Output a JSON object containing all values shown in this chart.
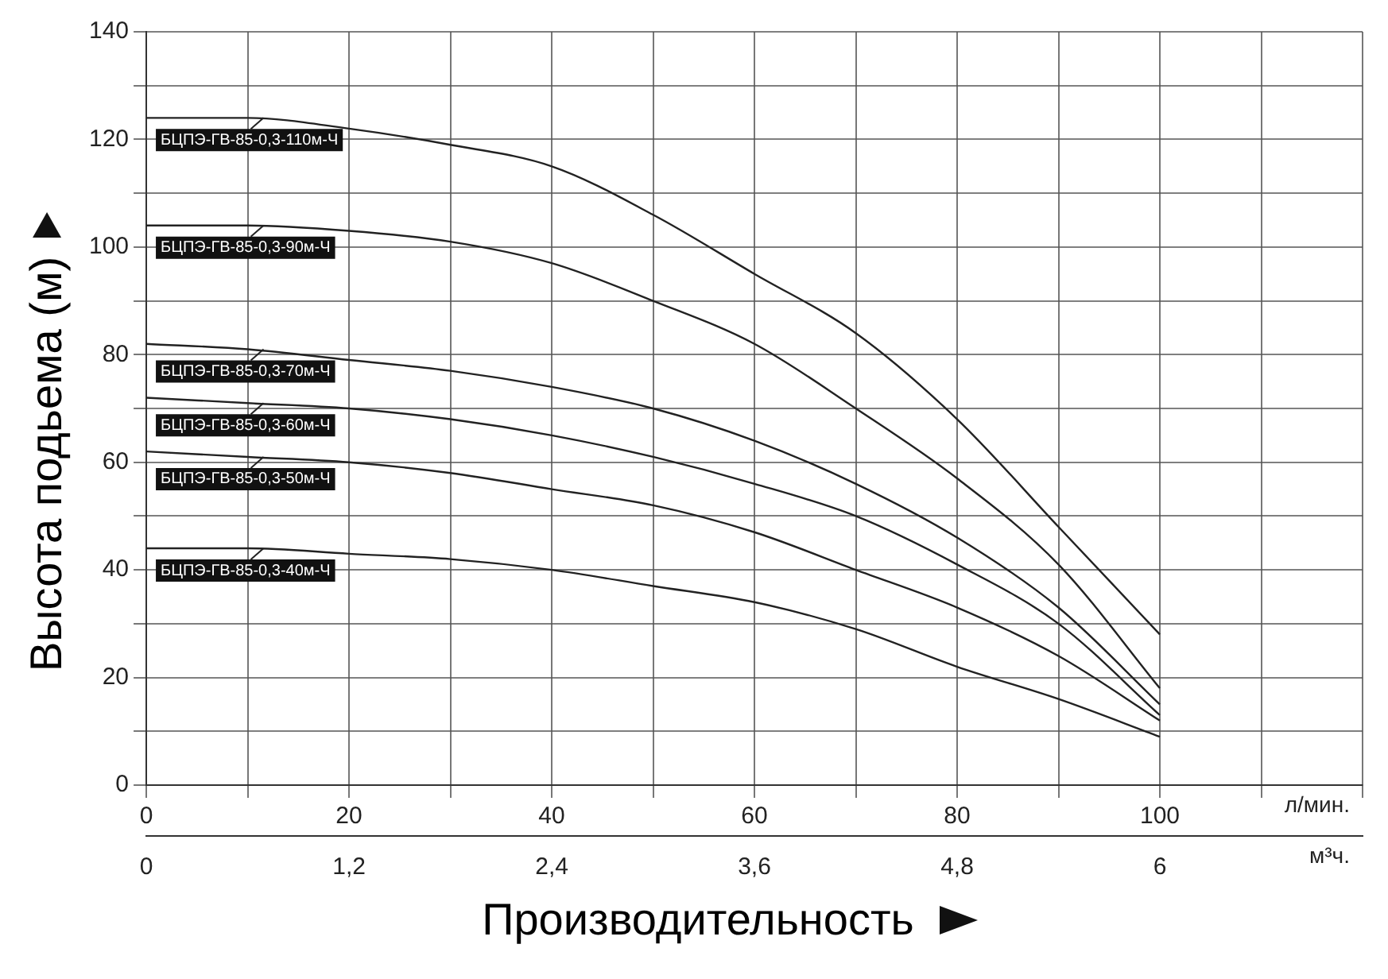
{
  "chart_data": {
    "type": "line",
    "xlabel": "Производительность",
    "ylabel": "Высота подьема (м)",
    "x": [
      0,
      10,
      20,
      30,
      40,
      50,
      60,
      70,
      80,
      90,
      100
    ],
    "series": [
      {
        "name": "БЦПЭ-ГВ-85-0,3-110м-Ч",
        "color": "#222222",
        "values": [
          124,
          124,
          122,
          119,
          115,
          106,
          95,
          84,
          68,
          48,
          28
        ]
      },
      {
        "name": "БЦПЭ-ГВ-85-0,3-90м-Ч",
        "color": "#222222",
        "values": [
          104,
          104,
          103,
          101,
          97,
          90,
          82,
          70,
          57,
          41,
          18
        ]
      },
      {
        "name": "БЦПЭ-ГВ-85-0,3-70м-Ч",
        "color": "#222222",
        "values": [
          82,
          81,
          79,
          77,
          74,
          70,
          64,
          56,
          46,
          33,
          15
        ]
      },
      {
        "name": "БЦПЭ-ГВ-85-0,3-60м-Ч",
        "color": "#222222",
        "values": [
          72,
          71,
          70,
          68,
          65,
          61,
          56,
          50,
          41,
          30,
          13
        ]
      },
      {
        "name": "БЦПЭ-ГВ-85-0,3-50м-Ч",
        "color": "#222222",
        "values": [
          62,
          61,
          60,
          58,
          55,
          52,
          47,
          40,
          33,
          24,
          12
        ]
      },
      {
        "name": "БЦПЭ-ГВ-85-0,3-40м-Ч",
        "color": "#222222",
        "values": [
          44,
          44,
          43,
          42,
          40,
          37,
          34,
          29,
          22,
          16,
          9
        ]
      }
    ],
    "xlim": [
      0,
      120
    ],
    "xticks": [
      0,
      {
        "value": 10,
        "label": null
      },
      20,
      {
        "value": 30,
        "label": null
      },
      40,
      {
        "value": 50,
        "label": null
      },
      60,
      {
        "value": 70,
        "label": null
      },
      80,
      {
        "value": 90,
        "label": null
      },
      100,
      {
        "value": 110,
        "label": null
      },
      {
        "value": 120,
        "label": null
      }
    ],
    "x2lim": [
      0,
      7.2
    ],
    "x2ticks": [
      0,
      {
        "value": 1.2,
        "label": "1,2"
      },
      {
        "value": 2.4,
        "label": "2,4"
      },
      {
        "value": 3.6,
        "label": "3,6"
      },
      {
        "value": 4.8,
        "label": "4,8"
      },
      6
    ],
    "ylim": [
      0,
      140
    ],
    "yticks": [
      0,
      {
        "value": 10,
        "label": null
      },
      20,
      {
        "value": 30,
        "label": null
      },
      40,
      {
        "value": 50,
        "label": null
      },
      60,
      {
        "value": 70,
        "label": null
      },
      80,
      {
        "value": 90,
        "label": null
      },
      100,
      {
        "value": 110,
        "label": null
      },
      120,
      {
        "value": 130,
        "label": null
      },
      140
    ],
    "annotations": [
      "л/мин.",
      "м³ч."
    ],
    "grid": true,
    "legend": "top left",
    "marker": "none",
    "line_style": "solid"
  }
}
